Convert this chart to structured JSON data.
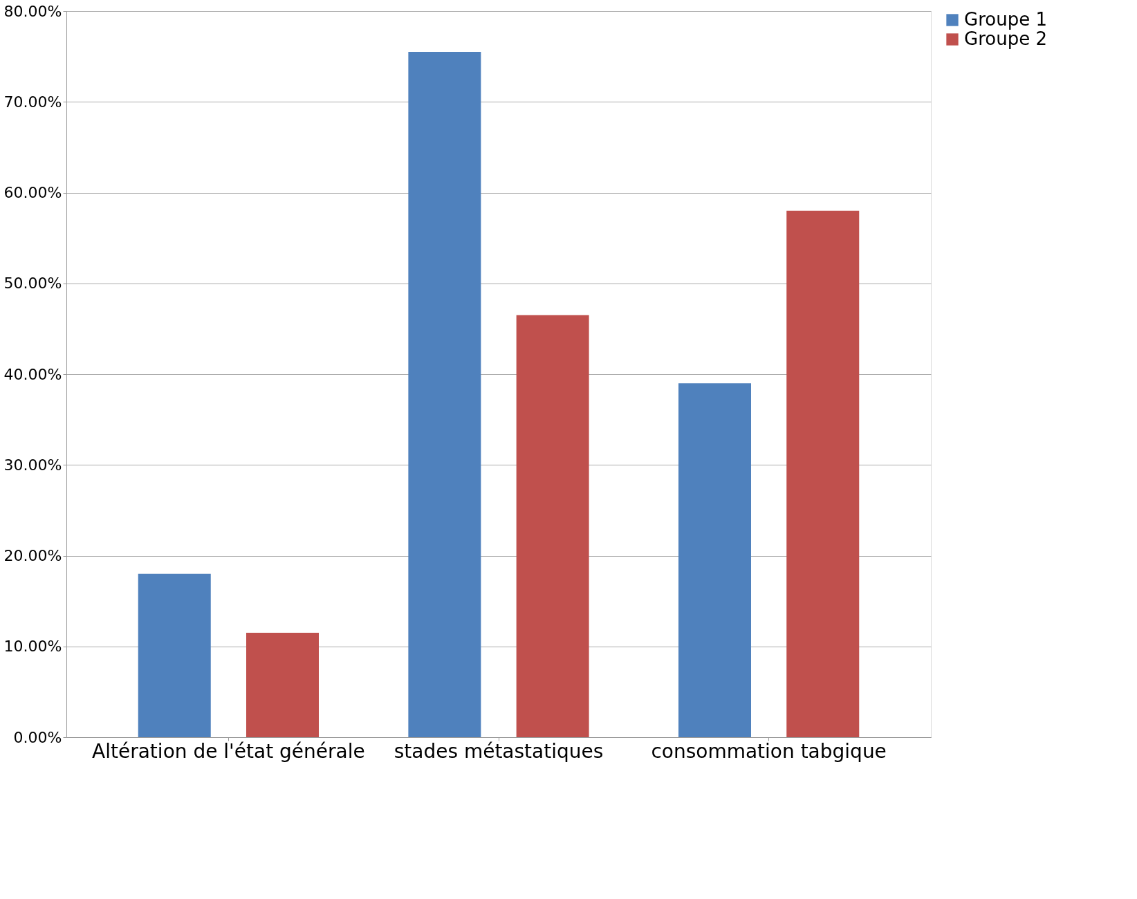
{
  "chart_data": {
    "type": "bar",
    "categories": [
      "Altération de l'état générale",
      "stades métastatiques",
      "consommation tabgique"
    ],
    "series": [
      {
        "name": "Groupe 1",
        "color": "#4f81bd",
        "values": [
          18,
          75.5,
          39
        ]
      },
      {
        "name": "Groupe 2",
        "color": "#c0504d",
        "values": [
          11.5,
          46.5,
          58
        ]
      }
    ],
    "ylim": [
      0,
      80
    ],
    "yticks": [
      {
        "value": 0,
        "label": "0.00%"
      },
      {
        "value": 10,
        "label": "10.00%"
      },
      {
        "value": 20,
        "label": "20.00%"
      },
      {
        "value": 30,
        "label": "30.00%"
      },
      {
        "value": 40,
        "label": "40.00%"
      },
      {
        "value": 50,
        "label": "50.00%"
      },
      {
        "value": 60,
        "label": "60.00%"
      },
      {
        "value": 70,
        "label": "70.00%"
      },
      {
        "value": 80,
        "label": "80.00%"
      }
    ],
    "grid": "y",
    "legend": "right"
  }
}
